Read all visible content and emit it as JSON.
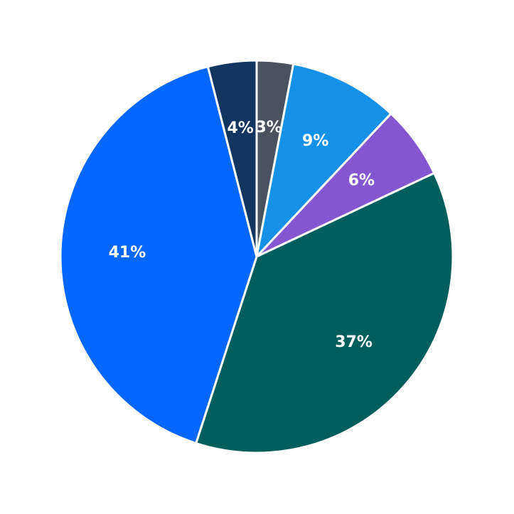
{
  "chart_data": {
    "type": "pie",
    "title": "",
    "start_angle_deg": 90,
    "direction": "clockwise",
    "slices": [
      {
        "label": "3%",
        "value": 3,
        "color": "#4a5260"
      },
      {
        "label": "9%",
        "value": 9,
        "color": "#1591e8"
      },
      {
        "label": "6%",
        "value": 6,
        "color": "#8456d0"
      },
      {
        "label": "37%",
        "value": 37,
        "color": "#005f5c"
      },
      {
        "label": "41%",
        "value": 41,
        "color": "#0567ff"
      },
      {
        "label": "4%",
        "value": 4,
        "color": "#12365f"
      }
    ]
  }
}
